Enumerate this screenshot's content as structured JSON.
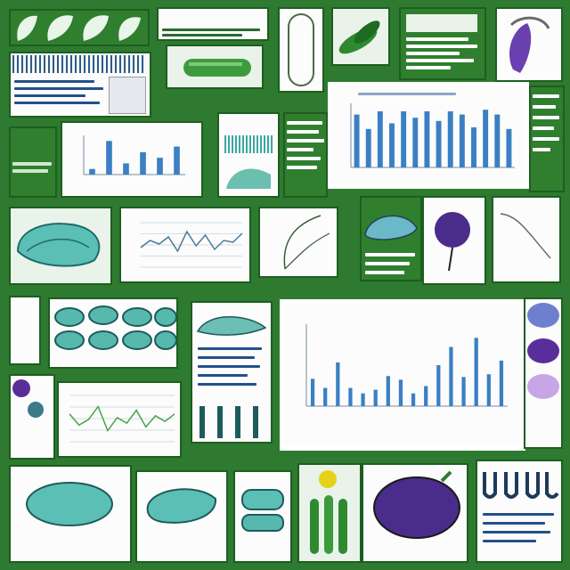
{
  "colors": {
    "background_green": "#2e7a30",
    "dark_green": "#1d5e20",
    "bar_blue": "#3b7fc4",
    "teal": "#3aa7a0",
    "purple": "#5a2e9a",
    "yellow": "#e6d21a"
  },
  "chart_data": [
    {
      "type": "bar",
      "values": [
        66,
        48,
        70,
        55,
        70,
        62,
        70,
        58,
        70,
        66,
        50,
        72,
        66,
        48
      ],
      "ylim": [
        0,
        80
      ]
    },
    {
      "type": "bar",
      "values": [
        30,
        20,
        48,
        20,
        14,
        18,
        33,
        29,
        14,
        22,
        45,
        65,
        32,
        75,
        35,
        50
      ],
      "ylim": [
        0,
        90
      ]
    },
    {
      "type": "line",
      "values": [
        22,
        30,
        26,
        34,
        18,
        40,
        24,
        36,
        20,
        30,
        28,
        38
      ],
      "ylim": [
        0,
        50
      ]
    },
    {
      "type": "line",
      "values": [
        30,
        18,
        24,
        38,
        12,
        26,
        20,
        34,
        16,
        28,
        22,
        30
      ],
      "ylim": [
        0,
        50
      ]
    },
    {
      "type": "bar",
      "values": [
        10,
        60,
        20,
        40,
        30,
        50
      ],
      "ylim": [
        0,
        70
      ]
    }
  ]
}
